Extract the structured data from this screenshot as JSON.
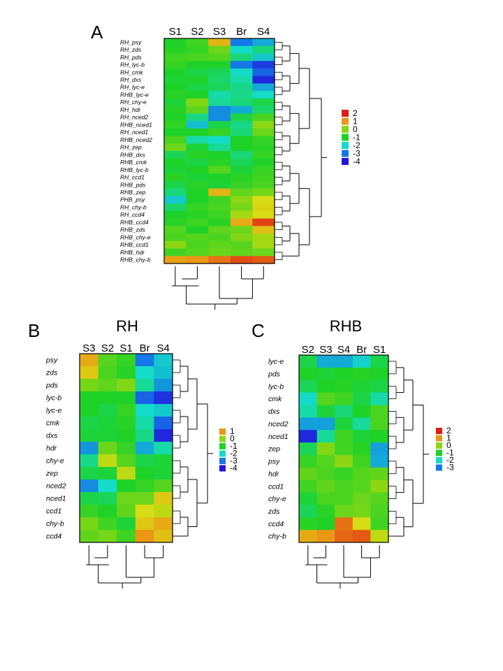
{
  "chart_data": [
    {
      "type": "heatmap",
      "panel": "A",
      "title": "",
      "columns": [
        "S1",
        "S2",
        "S3",
        "Br",
        "S4"
      ],
      "rows": [
        "RH_psy",
        "RH_zds",
        "RH_pds",
        "RH_lyc-b",
        "RH_cmk",
        "RH_dxs",
        "RH_lyc-e",
        "RHB_lyc-e",
        "RH_chy-e",
        "RH_hdr",
        "RH_nced2",
        "RHB_nced1",
        "RH_nced1",
        "RHB_nced2",
        "RH_zep",
        "RHB_dxs",
        "RHB_cmk",
        "RHB_lyc-b",
        "RH_ccd1",
        "RHB_pds",
        "RHB_zep",
        "PHB_psy",
        "RH_chy-b",
        "RH_ccd4",
        "RHB_ccd4",
        "RHB_zds",
        "RHB_chy-e",
        "RHB_ccd1",
        "RHB_hdr",
        "RHB_chy-b"
      ],
      "values": [
        [
          -1.0,
          -0.7,
          0.7,
          -3.0,
          -2.5
        ],
        [
          -0.9,
          -0.8,
          -0.3,
          -2.0,
          -1.5
        ],
        [
          -0.7,
          -0.6,
          -0.5,
          -1.5,
          -2.2
        ],
        [
          -0.8,
          -1.0,
          -1.0,
          -3.0,
          -3.6
        ],
        [
          -1.0,
          -1.2,
          -1.3,
          -2.0,
          -3.2
        ],
        [
          -1.1,
          -1.0,
          -1.4,
          -1.8,
          -3.8
        ],
        [
          -1.0,
          -1.2,
          -1.3,
          -1.6,
          -2.5
        ],
        [
          -0.9,
          -1.0,
          -1.8,
          -1.6,
          -2.0
        ],
        [
          -1.1,
          -0.1,
          -1.7,
          -1.5,
          -1.2
        ],
        [
          -0.9,
          -0.4,
          -2.8,
          -2.5,
          -1.4
        ],
        [
          -1.0,
          -1.6,
          -2.8,
          -1.2,
          -0.6
        ],
        [
          -0.8,
          -2.3,
          -1.2,
          -1.6,
          0.0
        ],
        [
          -1.0,
          -1.0,
          -0.8,
          -1.5,
          -0.3
        ],
        [
          -0.6,
          -1.8,
          -2.0,
          -1.0,
          -0.8
        ],
        [
          -0.3,
          -1.1,
          -1.7,
          -1.0,
          -0.9
        ],
        [
          -1.3,
          -0.9,
          -1.0,
          -1.5,
          -0.8
        ],
        [
          -1.0,
          -1.2,
          -0.9,
          -1.3,
          -1.0
        ],
        [
          -1.1,
          -1.0,
          -0.5,
          -1.1,
          -0.8
        ],
        [
          -0.9,
          -1.1,
          -1.0,
          -0.9,
          -0.7
        ],
        [
          -1.2,
          -0.9,
          -1.1,
          -0.8,
          -0.6
        ],
        [
          -1.5,
          -1.0,
          0.7,
          -0.4,
          -0.2
        ],
        [
          -2.2,
          -1.0,
          -0.7,
          0.0,
          0.3
        ],
        [
          -1.4,
          -0.8,
          -0.6,
          -0.2,
          0.4
        ],
        [
          -1.0,
          -0.9,
          -0.7,
          0.1,
          0.3
        ],
        [
          -0.9,
          -0.7,
          -0.9,
          0.8,
          1.7
        ],
        [
          -0.5,
          -1.0,
          -0.4,
          -0.3,
          0.6
        ],
        [
          -0.6,
          -0.5,
          -0.6,
          -0.1,
          0.1
        ],
        [
          0.0,
          -0.6,
          -0.4,
          -0.5,
          0.1
        ],
        [
          -0.7,
          -0.5,
          -0.3,
          -0.4,
          -0.3
        ],
        [
          0.9,
          1.0,
          1.3,
          1.6,
          1.5
        ]
      ],
      "legend": {
        "ticks": [
          "2",
          "1",
          "0",
          "-1",
          "-2",
          "-3",
          "-4"
        ]
      }
    },
    {
      "type": "heatmap",
      "panel": "B",
      "title": "RH",
      "columns": [
        "S3",
        "S2",
        "S1",
        "Br",
        "S4"
      ],
      "rows": [
        "psy",
        "zds",
        "pds",
        "lyc-b",
        "lyc-e",
        "cmk",
        "dxs",
        "hdr",
        "chy-e",
        "zep",
        "nced2",
        "nced1",
        "ccd1",
        "chy-b",
        "ccd4"
      ],
      "values": [
        [
          0.8,
          -0.5,
          -0.8,
          -3.0,
          -2.2
        ],
        [
          0.5,
          -0.6,
          -0.9,
          -2.0,
          -2.3
        ],
        [
          -0.2,
          -0.4,
          -0.1,
          -1.7,
          -2.7
        ],
        [
          -1.0,
          -1.0,
          -1.0,
          -3.2,
          -3.7
        ],
        [
          -1.0,
          -1.2,
          -0.8,
          -2.0,
          -2.2
        ],
        [
          -1.2,
          -1.1,
          -0.9,
          -1.8,
          -3.2
        ],
        [
          -1.1,
          -1.1,
          -1.0,
          -1.6,
          -3.8
        ],
        [
          -2.7,
          -0.3,
          -0.8,
          -2.5,
          -1.8
        ],
        [
          -1.6,
          0.2,
          -0.5,
          -1.2,
          -1.1
        ],
        [
          -1.2,
          -1.1,
          0.2,
          -1.0,
          -1.1
        ],
        [
          -2.8,
          -2.0,
          -1.0,
          -0.8,
          -0.5
        ],
        [
          -1.2,
          -1.3,
          -0.3,
          -0.3,
          0.5
        ],
        [
          -0.8,
          -1.0,
          -0.4,
          0.3,
          0.2
        ],
        [
          -0.2,
          -0.7,
          -1.1,
          0.5,
          0.8
        ],
        [
          -0.4,
          -0.2,
          -0.7,
          1.0,
          0.6
        ]
      ],
      "legend": {
        "ticks": [
          "1",
          "0",
          "-1",
          "-2",
          "-3",
          "-4"
        ]
      }
    },
    {
      "type": "heatmap",
      "panel": "C",
      "title": "RHB",
      "columns": [
        "S2",
        "S3",
        "S4",
        "Br",
        "S1"
      ],
      "rows": [
        "lyc-e",
        "pds",
        "lyc-b",
        "cmk",
        "dxs",
        "nced2",
        "nced1",
        "zep",
        "psy",
        "hdr",
        "ccd1",
        "chy-e",
        "zds",
        "ccd4",
        "chy-b"
      ],
      "values": [
        [
          -1.2,
          -2.5,
          -2.5,
          -2.1,
          -1.2
        ],
        [
          -1.0,
          -1.1,
          -1.0,
          -0.9,
          -1.0
        ],
        [
          -1.3,
          -1.0,
          -0.9,
          -1.1,
          -1.2
        ],
        [
          -2.0,
          -0.5,
          -0.7,
          -1.2,
          -1.8
        ],
        [
          -1.8,
          -1.1,
          -1.5,
          -1.0,
          -0.6
        ],
        [
          -2.6,
          -2.6,
          -1.1,
          -1.7,
          -0.6
        ],
        [
          -3.8,
          -1.7,
          -0.7,
          -1.1,
          -1.0
        ],
        [
          -1.3,
          -0.1,
          -0.7,
          -0.9,
          -2.6
        ],
        [
          -0.8,
          -0.5,
          0.0,
          -0.7,
          -2.5
        ],
        [
          -0.4,
          -0.6,
          -0.8,
          -0.5,
          -0.4
        ],
        [
          -0.7,
          -0.4,
          -0.6,
          -0.5,
          0.0
        ],
        [
          -1.1,
          -0.6,
          -0.6,
          -0.3,
          -0.5
        ],
        [
          -1.3,
          -0.9,
          -0.3,
          -0.2,
          -0.6
        ],
        [
          -0.9,
          -1.0,
          1.3,
          0.3,
          -0.7
        ],
        [
          0.8,
          1.0,
          1.4,
          1.5,
          0.2
        ]
      ],
      "legend": {
        "ticks": [
          "2",
          "1",
          "0",
          "-1",
          "-2",
          "-3"
        ]
      }
    }
  ]
}
